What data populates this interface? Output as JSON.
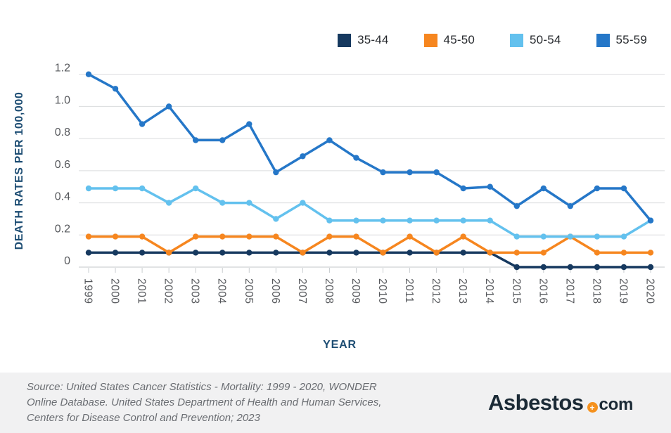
{
  "chart_data": {
    "type": "line",
    "title": "",
    "x": [
      "1999",
      "2000",
      "2001",
      "2002",
      "2003",
      "2004",
      "2005",
      "2006",
      "2007",
      "2008",
      "2009",
      "2010",
      "2011",
      "2012",
      "2013",
      "2014",
      "2015",
      "2016",
      "2017",
      "2018",
      "2019",
      "2020"
    ],
    "xlabel": "YEAR",
    "ylabel": "DEATH RATES PER 100,000",
    "ylim": [
      0,
      1.2
    ],
    "ytick_values": [
      0,
      0.2,
      0.4,
      0.6,
      0.8,
      1.0,
      1.2
    ],
    "ytick_labels": [
      "0",
      "0.2",
      "0.4",
      "0.6",
      "0.8",
      "1.0",
      "1.2"
    ],
    "grid": "horizontal",
    "legend_position": "top-right",
    "series": [
      {
        "name": "35-44",
        "color": "#16395f",
        "values": [
          0.09,
          0.09,
          0.09,
          0.09,
          0.09,
          0.09,
          0.09,
          0.09,
          0.09,
          0.09,
          0.09,
          0.09,
          0.09,
          0.09,
          0.09,
          0.09,
          0,
          0,
          0,
          0,
          0,
          0
        ]
      },
      {
        "name": "45-50",
        "color": "#f6861f",
        "values": [
          0.19,
          0.19,
          0.19,
          0.09,
          0.19,
          0.19,
          0.19,
          0.19,
          0.09,
          0.19,
          0.19,
          0.09,
          0.19,
          0.09,
          0.19,
          0.09,
          0.09,
          0.09,
          0.19,
          0.09,
          0.09,
          0.09
        ]
      },
      {
        "name": "50-54",
        "color": "#63c1ee",
        "values": [
          0.49,
          0.49,
          0.49,
          0.4,
          0.49,
          0.4,
          0.4,
          0.3,
          0.4,
          0.29,
          0.29,
          0.29,
          0.29,
          0.29,
          0.29,
          0.29,
          0.19,
          0.19,
          0.19,
          0.19,
          0.19,
          0.29
        ]
      },
      {
        "name": "55-59",
        "color": "#2577c8",
        "values": [
          1.2,
          1.11,
          0.89,
          1.0,
          0.79,
          0.79,
          0.89,
          0.59,
          0.69,
          0.79,
          0.68,
          0.59,
          0.59,
          0.59,
          0.49,
          0.5,
          0.38,
          0.49,
          0.38,
          0.49,
          0.49,
          0.29
        ]
      }
    ]
  },
  "colors": {
    "gridline": "#dadcdd",
    "axis_line": "#c3c7ca",
    "tick_mark": "#c9cdd0",
    "tick_text": "#56585c",
    "axis_title": "#1d4d73",
    "legend_text": "#26292d",
    "footer_background": "#f1f1f2",
    "footer_text": "#6a6d72",
    "logo_dark": "#1b2a36",
    "logo_accent": "#f5911e"
  },
  "footer": {
    "source_lines": [
      "Source: United States Cancer Statistics - Mortality: 1999 - 2020, WONDER",
      "Online Database. United States Department of Health and Human Services,",
      "Centers for Disease Control and Prevention; 2023"
    ],
    "logo": {
      "name_part": "Asbestos",
      "tld_part": "com",
      "plus_glyph": "+"
    }
  }
}
